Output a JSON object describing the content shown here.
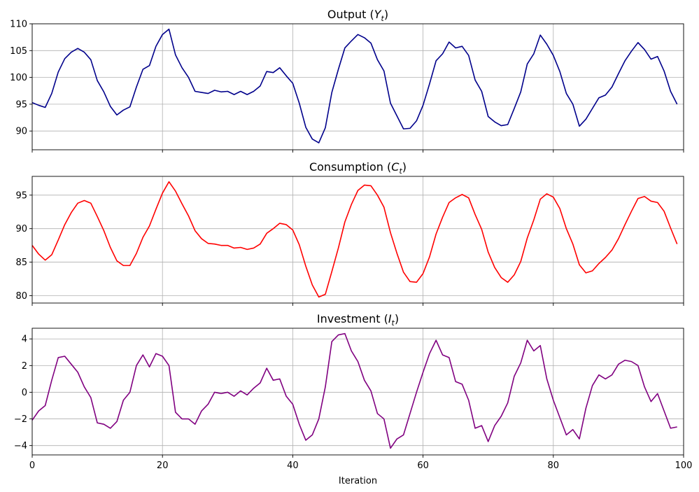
{
  "chart_data": [
    {
      "type": "line",
      "title": "Output",
      "title_sym": "Y",
      "title_sub": "t",
      "color": "#00008b",
      "xlim": [
        0,
        100
      ],
      "ylim": [
        86.5,
        110
      ],
      "yticks": [
        90,
        95,
        100,
        105,
        110
      ],
      "xticks": [
        0,
        20,
        40,
        60,
        80,
        100
      ],
      "grid": true,
      "show_xtick_labels": false,
      "xlabel": "",
      "ylabel": "",
      "series": [
        {
          "values": [
            95.3,
            94.8,
            94.4,
            97.0,
            101.0,
            103.5,
            104.7,
            105.4,
            104.7,
            103.3,
            99.4,
            97.3,
            94.6,
            93.0,
            93.9,
            94.5,
            98.2,
            101.5,
            102.2,
            105.8,
            108.0,
            109.0,
            104.2,
            101.8,
            100.0,
            97.4,
            97.2,
            97.0,
            97.6,
            97.3,
            97.4,
            96.8,
            97.4,
            96.8,
            97.4,
            98.4,
            101.1,
            100.9,
            101.8,
            100.3,
            98.9,
            95.2,
            90.7,
            88.5,
            87.8,
            90.6,
            97.2,
            101.5,
            105.5,
            106.8,
            108.0,
            107.4,
            106.4,
            103.3,
            101.2,
            95.2,
            92.8,
            90.4,
            90.5,
            91.9,
            94.8,
            98.8,
            103.1,
            104.4,
            106.6,
            105.5,
            105.8,
            104.1,
            99.5,
            97.4,
            92.7,
            91.7,
            91.0,
            91.2,
            94.2,
            97.3,
            102.5,
            104.4,
            107.9,
            106.2,
            104.1,
            101.1,
            97.0,
            95.0,
            90.9,
            92.2,
            94.2,
            96.2,
            96.7,
            98.2,
            100.7,
            103.1,
            104.9,
            106.5,
            105.2,
            103.4,
            103.9,
            101.2,
            97.4,
            95.0
          ]
        }
      ]
    },
    {
      "type": "line",
      "title": "Consumption",
      "title_sym": "C",
      "title_sub": "t",
      "color": "#ff0000",
      "xlim": [
        0,
        100
      ],
      "ylim": [
        78.9,
        97.8
      ],
      "yticks": [
        80,
        85,
        90,
        95
      ],
      "xticks": [
        0,
        20,
        40,
        60,
        80,
        100
      ],
      "grid": true,
      "show_xtick_labels": false,
      "xlabel": "",
      "ylabel": "",
      "series": [
        {
          "values": [
            87.5,
            86.2,
            85.3,
            86.1,
            88.3,
            90.6,
            92.4,
            93.8,
            94.2,
            93.8,
            91.8,
            89.7,
            87.2,
            85.2,
            84.5,
            84.5,
            86.3,
            88.7,
            90.4,
            92.9,
            95.3,
            97.0,
            95.6,
            93.7,
            91.9,
            89.7,
            88.5,
            87.8,
            87.7,
            87.5,
            87.5,
            87.1,
            87.2,
            86.9,
            87.1,
            87.7,
            89.3,
            90.0,
            90.8,
            90.6,
            89.8,
            87.6,
            84.4,
            81.6,
            79.8,
            80.2,
            83.6,
            87.1,
            91.0,
            93.6,
            95.7,
            96.5,
            96.4,
            95.0,
            93.2,
            89.4,
            86.3,
            83.5,
            82.1,
            82.0,
            83.3,
            85.8,
            89.2,
            91.7,
            93.9,
            94.6,
            95.1,
            94.6,
            92.1,
            89.9,
            86.5,
            84.2,
            82.7,
            82.0,
            83.1,
            85.1,
            88.6,
            91.3,
            94.4,
            95.2,
            94.7,
            93.0,
            90.0,
            87.7,
            84.6,
            83.4,
            83.7,
            84.8,
            85.7,
            86.8,
            88.5,
            90.6,
            92.6,
            94.5,
            94.8,
            94.1,
            93.9,
            92.6,
            90.1,
            87.7
          ]
        }
      ]
    },
    {
      "type": "line",
      "title": "Investment",
      "title_sym": "I",
      "title_sub": "t",
      "color": "#800080",
      "xlim": [
        0,
        100
      ],
      "ylim": [
        -4.7,
        4.8
      ],
      "yticks": [
        -4,
        -2,
        0,
        2,
        4
      ],
      "xticks": [
        0,
        20,
        40,
        60,
        80,
        100
      ],
      "grid": true,
      "show_xtick_labels": true,
      "xlabel": "Iteration",
      "ylabel": "",
      "series": [
        {
          "values": [
            -2.1,
            -1.4,
            -1.0,
            0.9,
            2.6,
            2.7,
            2.1,
            1.5,
            0.4,
            -0.4,
            -2.3,
            -2.4,
            -2.7,
            -2.2,
            -0.6,
            0.0,
            2.0,
            2.8,
            1.9,
            2.9,
            2.7,
            2.0,
            -1.5,
            -2.0,
            -2.0,
            -2.4,
            -1.4,
            -0.9,
            0.0,
            -0.1,
            0.0,
            -0.3,
            0.1,
            -0.2,
            0.3,
            0.7,
            1.8,
            0.9,
            1.0,
            -0.3,
            -0.9,
            -2.4,
            -3.6,
            -3.2,
            -2.0,
            0.4,
            3.8,
            4.3,
            4.4,
            3.1,
            2.3,
            0.9,
            0.1,
            -1.6,
            -2.0,
            -4.2,
            -3.5,
            -3.2,
            -1.6,
            0.0,
            1.5,
            2.9,
            3.9,
            2.8,
            2.6,
            0.8,
            0.6,
            -0.6,
            -2.7,
            -2.5,
            -3.7,
            -2.5,
            -1.8,
            -0.8,
            1.2,
            2.2,
            3.9,
            3.1,
            3.5,
            1.0,
            -0.6,
            -1.9,
            -3.2,
            -2.8,
            -3.5,
            -1.2,
            0.5,
            1.3,
            1.0,
            1.3,
            2.1,
            2.4,
            2.3,
            2.0,
            0.4,
            -0.7,
            -0.1,
            -1.4,
            -2.7,
            -2.6
          ]
        }
      ]
    }
  ]
}
